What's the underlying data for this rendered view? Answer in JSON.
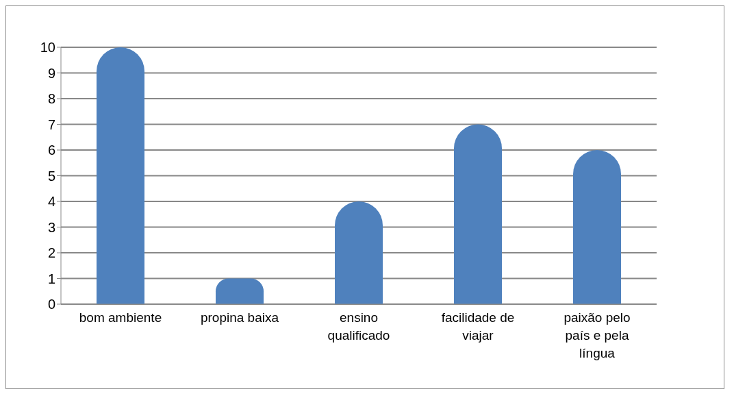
{
  "chart_data": {
    "type": "bar",
    "categories": [
      "bom ambiente",
      "propina baixa",
      "ensino qualificado",
      "facilidade de viajar",
      "paixão pelo país e pela língua"
    ],
    "values": [
      10,
      1,
      4,
      7,
      6
    ],
    "color": "#4f81bd",
    "ylim": [
      0,
      10
    ],
    "yticks": [
      0,
      1,
      2,
      3,
      4,
      5,
      6,
      7,
      8,
      9,
      10
    ],
    "grid": "y"
  }
}
